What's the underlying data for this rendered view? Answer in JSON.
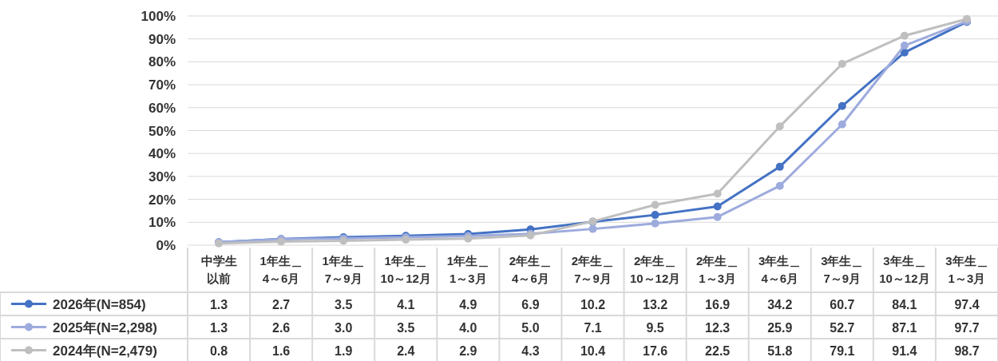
{
  "chart_data": {
    "type": "line",
    "categories": [
      "中学生以前",
      "1年生＿4～6月",
      "1年生＿7～9月",
      "1年生＿10～12月",
      "1年生＿1～3月",
      "2年生＿4～6月",
      "2年生＿7～9月",
      "2年生＿10～12月",
      "2年生＿1～3月",
      "3年生＿4～6月",
      "3年生＿7～9月",
      "3年生＿10～12月",
      "3年生＿1～3月"
    ],
    "series": [
      {
        "name": "2026年(N=854)",
        "color": "#4472c4",
        "values": [
          1.3,
          2.7,
          3.5,
          4.1,
          4.9,
          6.9,
          10.2,
          13.2,
          16.9,
          34.2,
          60.7,
          84.1,
          97.4
        ]
      },
      {
        "name": "2025年(N=2,298)",
        "color": "#9dabdd",
        "values": [
          1.3,
          2.6,
          3.0,
          3.5,
          4.0,
          5.0,
          7.1,
          9.5,
          12.3,
          25.9,
          52.7,
          87.1,
          97.7
        ],
        "value_labels": [
          "1.3",
          "2.6",
          "3.0",
          "3.5",
          "4.0",
          "5.0",
          "7.1",
          "9.5",
          "12.3",
          "25.9",
          "52.7",
          "87.1",
          "97.7"
        ]
      },
      {
        "name": "2024年(N=2,479)",
        "color": "#bfbfbf",
        "values": [
          0.8,
          1.6,
          1.9,
          2.4,
          2.9,
          4.3,
          10.4,
          17.6,
          22.5,
          51.8,
          79.1,
          91.4,
          98.7
        ]
      }
    ],
    "ylim": [
      0,
      100
    ],
    "yticks": [
      {
        "value": 0,
        "label": "0%"
      },
      {
        "value": 10,
        "label": "10%"
      },
      {
        "value": 20,
        "label": "20%"
      },
      {
        "value": 30,
        "label": "30%"
      },
      {
        "value": 40,
        "label": "40%"
      },
      {
        "value": 50,
        "label": "50%"
      },
      {
        "value": 60,
        "label": "60%"
      },
      {
        "value": 70,
        "label": "70%"
      },
      {
        "value": 80,
        "label": "80%"
      },
      {
        "value": 90,
        "label": "90%"
      },
      {
        "value": 100,
        "label": "100%"
      }
    ],
    "grid": "y",
    "legend": "bottom left",
    "marker": "circle",
    "data_labels": true
  }
}
